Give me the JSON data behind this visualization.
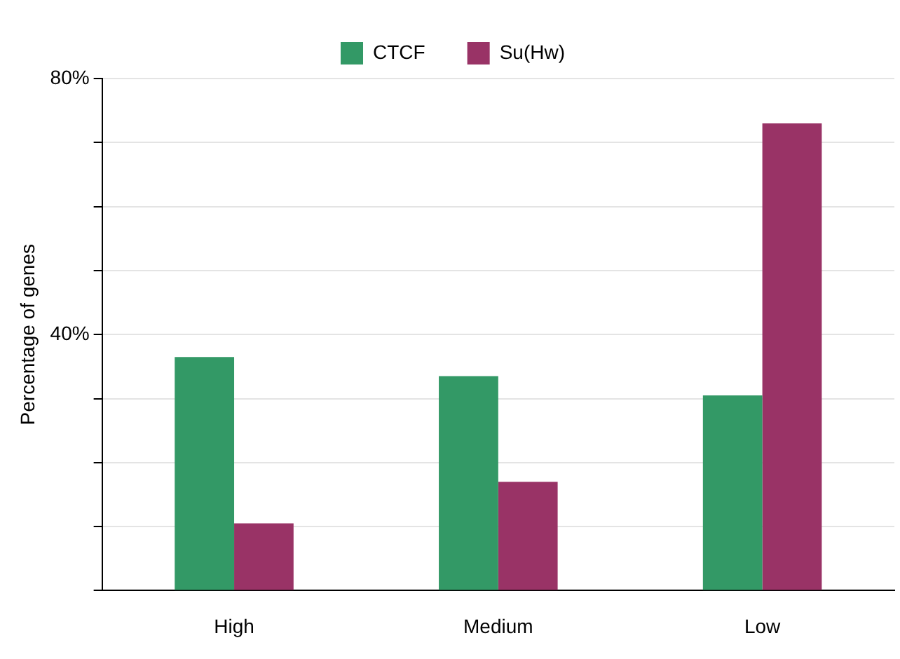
{
  "chart_data": {
    "type": "bar",
    "ylabel": "Percentage of genes",
    "categories": [
      "High",
      "Medium",
      "Low"
    ],
    "series": [
      {
        "name": "CTCF",
        "color": "#339966",
        "values": [
          36.5,
          33.5,
          30.5
        ]
      },
      {
        "name": "Su(Hw)",
        "color": "#993366",
        "values": [
          10.5,
          17,
          73
        ]
      }
    ],
    "ylim": [
      0,
      80
    ],
    "yticks": [
      {
        "value": 0,
        "label": null
      },
      {
        "value": 10,
        "label": null
      },
      {
        "value": 20,
        "label": null
      },
      {
        "value": 30,
        "label": null
      },
      {
        "value": 40,
        "label": "40%"
      },
      {
        "value": 50,
        "label": null
      },
      {
        "value": 60,
        "label": null
      },
      {
        "value": 70,
        "label": null
      },
      {
        "value": 80,
        "label": "80%"
      }
    ],
    "grid": "y",
    "legend": "top"
  }
}
